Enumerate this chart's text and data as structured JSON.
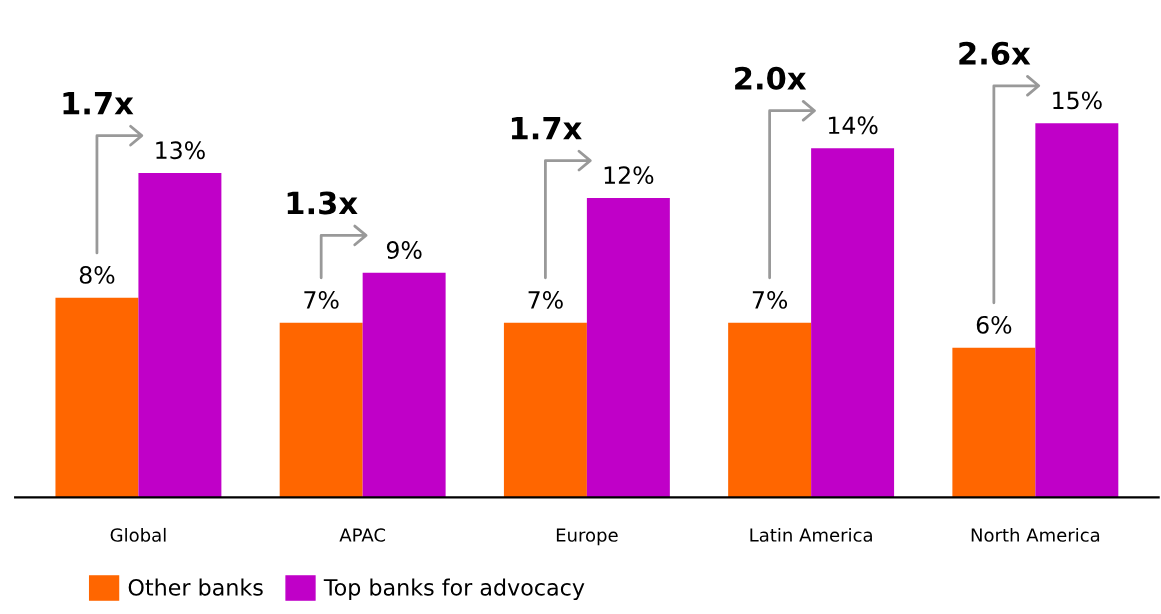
{
  "chart_data": {
    "type": "bar",
    "categories": [
      "Global",
      "APAC",
      "Europe",
      "Latin America",
      "North America"
    ],
    "series": [
      {
        "name": "Other banks",
        "color": "#ff6600",
        "values": [
          8,
          7,
          7,
          7,
          6
        ],
        "value_labels": [
          "8%",
          "7%",
          "7%",
          "7%",
          "6%"
        ]
      },
      {
        "name": "Top banks for advocacy",
        "color": "#c000c8",
        "values": [
          13,
          9,
          12,
          14,
          15
        ],
        "value_labels": [
          "13%",
          "9%",
          "12%",
          "14%",
          "15%"
        ]
      }
    ],
    "annotations": [
      {
        "text": "1.7x",
        "x": "Global",
        "y": 13
      },
      {
        "text": "1.3x",
        "x": "APAC",
        "y": 9
      },
      {
        "text": "1.7x",
        "x": "Europe",
        "y": 12
      },
      {
        "text": "2.0x",
        "x": "Latin America",
        "y": 14
      },
      {
        "text": "2.6x",
        "x": "North America",
        "y": 15
      }
    ],
    "legend": "bottom left",
    "grid": false
  }
}
